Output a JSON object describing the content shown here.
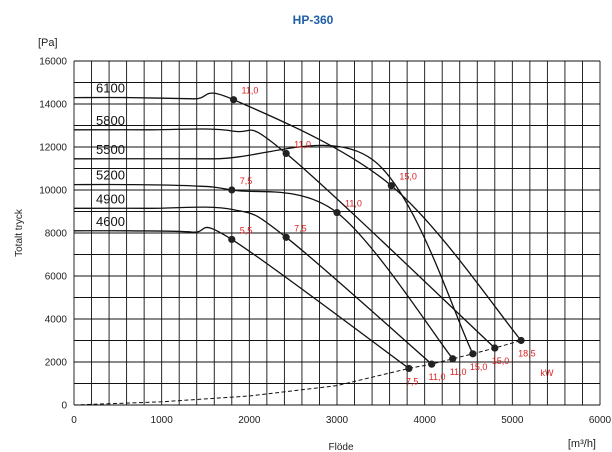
{
  "chart_data": {
    "type": "line",
    "title": "HP-360",
    "xlabel": "Flöde",
    "ylabel": "Totalt tryck",
    "x_unit": "[m³/h]",
    "y_unit": "[Pa]",
    "xlim": [
      0,
      6000
    ],
    "ylim": [
      0,
      16000
    ],
    "x_ticks": [
      "0",
      "1000",
      "2000",
      "3000",
      "4000",
      "5000",
      "6000"
    ],
    "y_ticks": [
      "0",
      "2000",
      "4000",
      "6000",
      "8000",
      "10000",
      "12000",
      "14000",
      "16000"
    ],
    "grid": true,
    "power_unit": "kW",
    "series": [
      {
        "name": "6100",
        "shutoff_pressure": 14300,
        "points": [
          {
            "x": 1820,
            "y": 14200,
            "label": "11,0"
          },
          {
            "x": 3620,
            "y": 10200,
            "label": "15,0"
          },
          {
            "x": 5100,
            "y": 3000,
            "label": "18,5"
          }
        ]
      },
      {
        "name": "5800",
        "shutoff_pressure": 12800,
        "points": [
          {
            "x": 2420,
            "y": 11700,
            "label": "11,0"
          },
          {
            "x": 4800,
            "y": 2650,
            "label": "15,0"
          }
        ]
      },
      {
        "name": "5500",
        "shutoff_pressure": 11450,
        "points": [
          {
            "x": 4550,
            "y": 2380,
            "label": "15,0"
          }
        ]
      },
      {
        "name": "5200",
        "shutoff_pressure": 10250,
        "points": [
          {
            "x": 1800,
            "y": 10000,
            "label": "7,5"
          },
          {
            "x": 3000,
            "y": 8950,
            "label": "11,0"
          },
          {
            "x": 4320,
            "y": 2150,
            "label": "11,0"
          }
        ]
      },
      {
        "name": "4900",
        "shutoff_pressure": 9150,
        "points": [
          {
            "x": 2420,
            "y": 7800,
            "label": "7,5"
          },
          {
            "x": 4080,
            "y": 1900,
            "label": "11,0"
          }
        ]
      },
      {
        "name": "4600",
        "shutoff_pressure": 8100,
        "points": [
          {
            "x": 1800,
            "y": 7700,
            "label": "5,5"
          },
          {
            "x": 3820,
            "y": 1700,
            "label": "7,5"
          }
        ]
      }
    ],
    "system_curve": [
      [
        0,
        0
      ],
      [
        1000,
        150
      ],
      [
        2000,
        420
      ],
      [
        3000,
        900
      ],
      [
        3820,
        1700
      ],
      [
        4080,
        1900
      ],
      [
        4320,
        2150
      ],
      [
        4550,
        2380
      ],
      [
        4800,
        2650
      ],
      [
        5100,
        3000
      ]
    ]
  }
}
